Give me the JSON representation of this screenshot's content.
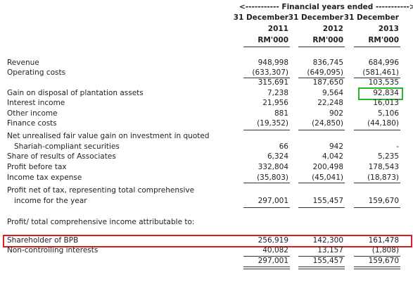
{
  "header": {
    "span": "<----------- Financial years ended ----------->",
    "columns": [
      {
        "date": "31 December",
        "year": "2011",
        "unit": "RM'000"
      },
      {
        "date": "31 December",
        "year": "2012",
        "unit": "RM'000"
      },
      {
        "date": "31 December",
        "year": "2013",
        "unit": "RM'000"
      }
    ]
  },
  "table": {
    "rows": [
      {
        "label": [
          "Revenue"
        ],
        "values": [
          "948,998",
          "836,745",
          "684,996"
        ]
      },
      {
        "label": [
          "Operating costs"
        ],
        "values": [
          "(633,307)",
          "(649,095)",
          "(581,461)"
        ]
      },
      {
        "label": [],
        "values": [
          "315,691",
          "187,650",
          "103,535"
        ]
      },
      {
        "label": [
          "Gain on disposal of plantation assets"
        ],
        "values": [
          "7,238",
          "9,564",
          "92,834"
        ]
      },
      {
        "label": [
          "Interest income"
        ],
        "values": [
          "21,956",
          "22,248",
          "16,013"
        ]
      },
      {
        "label": [
          "Other income"
        ],
        "values": [
          "881",
          "902",
          "5,106"
        ]
      },
      {
        "label": [
          "Finance costs"
        ],
        "values": [
          "(19,352)",
          "(24,850)",
          "(44,180)"
        ]
      },
      {
        "label": [
          "Net unrealised fair value gain on investment in quoted",
          "Shariah-compliant securities"
        ],
        "values": [
          "66",
          "942",
          "-"
        ]
      },
      {
        "label": [
          "Share of results of Associates"
        ],
        "values": [
          "6,324",
          "4,042",
          "5,235"
        ]
      },
      {
        "label": [
          "Profit before tax"
        ],
        "values": [
          "332,804",
          "200,498",
          "178,543"
        ]
      },
      {
        "label": [
          "Income tax expense"
        ],
        "values": [
          "(35,803)",
          "(45,041)",
          "(18,873)"
        ]
      },
      {
        "label": [
          "Profit net of tax, representing total comprehensive",
          "income for the year"
        ],
        "values": [
          "297,001",
          "155,457",
          "159,670"
        ]
      },
      {
        "label": [
          "Profit/ total comprehensive income attributable to:"
        ],
        "values": []
      },
      {
        "label": [
          "Shareholder of BPB"
        ],
        "values": [
          "256,919",
          "142,300",
          "161,478"
        ]
      },
      {
        "label": [
          "Non-controlling interests"
        ],
        "values": [
          "40,082",
          "13,157",
          "(1,808)"
        ]
      },
      {
        "label": [],
        "values": [
          "297,001",
          "155,457",
          "159,670"
        ]
      }
    ]
  }
}
